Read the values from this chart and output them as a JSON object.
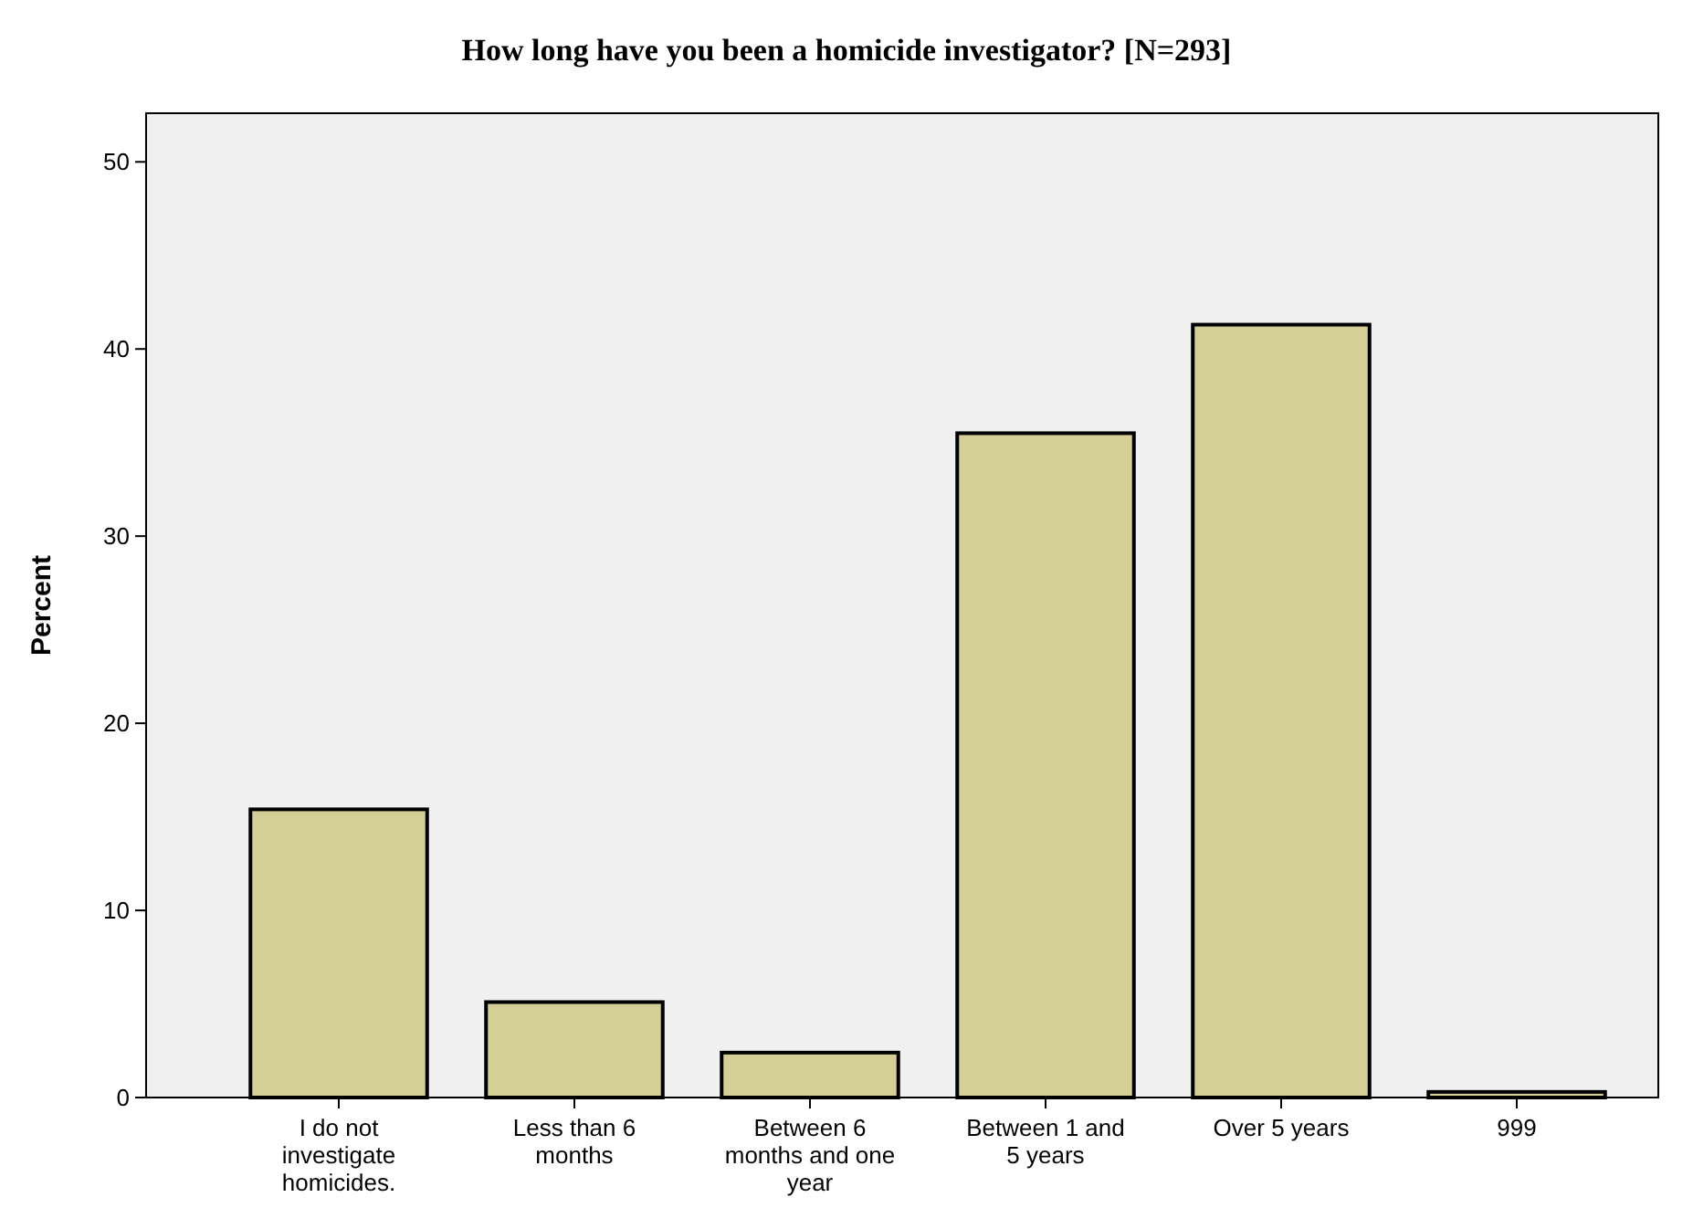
{
  "chart_data": {
    "type": "bar",
    "title": "How long have you been a homicide investigator?  [N=293]",
    "ylabel": "Percent",
    "categories": [
      "I do not investigate homicides.",
      "Less than 6 months",
      "Between 6 months and one year",
      "Between 1 and 5 years",
      "Over 5 years",
      "999"
    ],
    "values": [
      15.4,
      5.1,
      2.4,
      35.5,
      41.3,
      0.3
    ],
    "color": "#d4cf96",
    "ylim": [
      0,
      52.6
    ],
    "yticks": [
      0,
      10,
      20,
      30,
      40,
      50
    ],
    "grid": false
  }
}
